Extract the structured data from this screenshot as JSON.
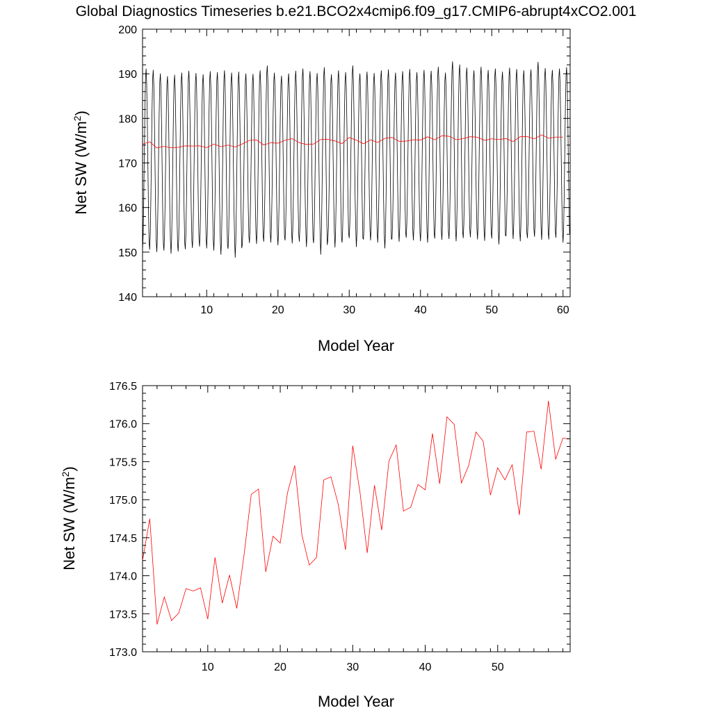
{
  "page_title": "Global Diagnostics Timeseries b.e21.BCO2x4cmip6.f09_g17.CMIP6-abrupt4xCO2.001",
  "chart_data": [
    {
      "type": "line",
      "title": "",
      "xlabel": "Model Year",
      "ylabel": "Net SW (W/m2)",
      "ylabel_parts": {
        "main": "Net SW (W/m",
        "sup": "2",
        "close": ")"
      },
      "xlim": [
        1,
        61
      ],
      "ylim": [
        140,
        200
      ],
      "xticks": [
        10,
        20,
        30,
        40,
        50,
        60
      ],
      "yticks": [
        140,
        150,
        160,
        170,
        180,
        190,
        200
      ],
      "grid": false,
      "series": [
        {
          "color": "#000000",
          "monthly": true,
          "seasonal_min": [
            150.2,
            150.5,
            150.0,
            150.3,
            149.6,
            150.1,
            150.6,
            150.9,
            151.2,
            150.8,
            150.3,
            149.4,
            150.7,
            148.7,
            151.6,
            152.0,
            151.8,
            152.3,
            152.1,
            151.5,
            152.6,
            151.9,
            152.3,
            151.1,
            152.0,
            149.4,
            152.6,
            151.0,
            152.1,
            153.1,
            151.1,
            152.8,
            152.6,
            152.1,
            150.8,
            152.9,
            152.3,
            153.2,
            152.6,
            152.4,
            152.1,
            153.0,
            152.7,
            152.9,
            152.4,
            153.1,
            153.3,
            152.8,
            152.5,
            153.0,
            151.7,
            153.6,
            152.9,
            152.4,
            153.1,
            153.4,
            152.7,
            152.8,
            153.2,
            152.1
          ],
          "seasonal_max": [
            191.2,
            190.9,
            190.1,
            189.5,
            189.8,
            190.3,
            190.7,
            190.2,
            189.9,
            190.6,
            190.4,
            190.8,
            190.3,
            190.5,
            190.1,
            190.0,
            190.8,
            191.9,
            190.3,
            189.6,
            190.1,
            190.7,
            191.2,
            190.6,
            190.2,
            191.5,
            189.9,
            190.8,
            190.4,
            191.9,
            190.1,
            190.5,
            190.2,
            190.8,
            191.0,
            190.3,
            190.6,
            191.1,
            190.4,
            190.9,
            190.7,
            191.6,
            190.3,
            192.8,
            192.1,
            191.4,
            190.8,
            191.6,
            190.9,
            191.2,
            190.5,
            191.4,
            191.1,
            190.8,
            191.0,
            192.7,
            191.3,
            190.9,
            191.2,
            191.5
          ]
        },
        {
          "color": "#ff0000",
          "x": [
            1,
            2,
            3,
            4,
            5,
            6,
            7,
            8,
            9,
            10,
            11,
            12,
            13,
            14,
            15,
            16,
            17,
            18,
            19,
            20,
            21,
            22,
            23,
            24,
            25,
            26,
            27,
            28,
            29,
            30,
            31,
            32,
            33,
            34,
            35,
            36,
            37,
            38,
            39,
            40,
            41,
            42,
            43,
            44,
            45,
            46,
            47,
            48,
            49,
            50,
            51,
            52,
            53,
            54,
            55,
            56,
            57,
            58,
            59,
            60
          ],
          "values": [
            174.2,
            174.75,
            173.36,
            173.72,
            173.41,
            173.51,
            173.83,
            173.8,
            173.84,
            173.43,
            174.24,
            173.64,
            174.01,
            173.57,
            174.27,
            175.07,
            175.14,
            174.05,
            174.52,
            174.43,
            175.09,
            175.45,
            174.53,
            174.14,
            174.24,
            175.26,
            175.3,
            174.94,
            174.34,
            175.71,
            175.1,
            174.3,
            175.19,
            174.6,
            175.51,
            175.72,
            174.85,
            174.9,
            175.2,
            175.13,
            175.87,
            175.21,
            176.09,
            175.99,
            175.22,
            175.45,
            175.89,
            175.77,
            175.06,
            175.42,
            175.26,
            175.46,
            174.8,
            175.89,
            175.9,
            175.4,
            176.3,
            175.53,
            175.81,
            175.8
          ]
        }
      ]
    },
    {
      "type": "line",
      "title": "",
      "xlabel": "Model Year",
      "ylabel": "Net SW (W/m2)",
      "ylabel_parts": {
        "main": "Net SW (W/m",
        "sup": "2",
        "close": ")"
      },
      "xlim": [
        1,
        60
      ],
      "ylim": [
        173.0,
        176.5
      ],
      "xticks": [
        10,
        20,
        30,
        40,
        50
      ],
      "yticks": [
        "173.0",
        "173.5",
        "174.0",
        "174.5",
        "175.0",
        "175.5",
        "176.0",
        "176.5"
      ],
      "grid": false,
      "series": [
        {
          "color": "#ff0000",
          "x": [
            1,
            2,
            3,
            4,
            5,
            6,
            7,
            8,
            9,
            10,
            11,
            12,
            13,
            14,
            15,
            16,
            17,
            18,
            19,
            20,
            21,
            22,
            23,
            24,
            25,
            26,
            27,
            28,
            29,
            30,
            31,
            32,
            33,
            34,
            35,
            36,
            37,
            38,
            39,
            40,
            41,
            42,
            43,
            44,
            45,
            46,
            47,
            48,
            49,
            50,
            51,
            52,
            53,
            54,
            55,
            56,
            57,
            58,
            59,
            60
          ],
          "values": [
            174.2,
            174.75,
            173.36,
            173.72,
            173.41,
            173.51,
            173.83,
            173.8,
            173.84,
            173.43,
            174.24,
            173.64,
            174.01,
            173.57,
            174.27,
            175.07,
            175.14,
            174.05,
            174.52,
            174.43,
            175.09,
            175.45,
            174.53,
            174.14,
            174.24,
            175.26,
            175.3,
            174.94,
            174.34,
            175.71,
            175.1,
            174.3,
            175.19,
            174.6,
            175.51,
            175.72,
            174.85,
            174.9,
            175.2,
            175.13,
            175.87,
            175.21,
            176.09,
            175.99,
            175.22,
            175.45,
            175.89,
            175.77,
            175.06,
            175.42,
            175.26,
            175.46,
            174.8,
            175.89,
            175.9,
            175.4,
            176.3,
            175.53,
            175.81,
            175.8
          ]
        }
      ]
    }
  ]
}
